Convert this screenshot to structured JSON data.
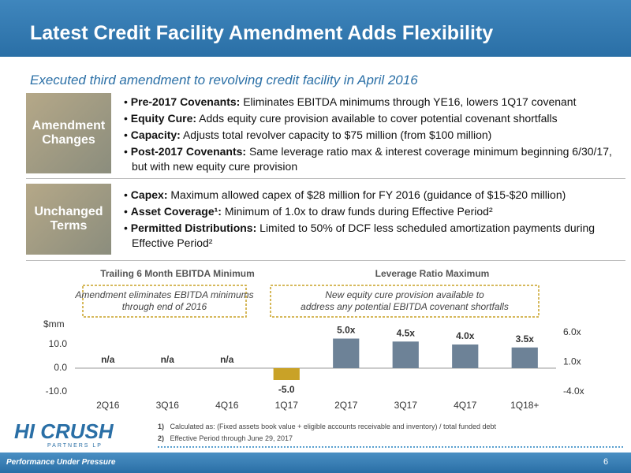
{
  "header": {
    "title": "Latest Credit Facility Amendment Adds Flexibility",
    "subtitle": "Executed third amendment to revolving credit facility in April 2016"
  },
  "sections": [
    {
      "label": "Amendment Changes",
      "bullets": [
        {
          "bold": "Pre-2017 Covenants:",
          "text": "Eliminates EBITDA minimums through YE16, lowers 1Q17 covenant"
        },
        {
          "bold": "Equity Cure:",
          "text": "Adds equity cure provision available to cover potential covenant shortfalls"
        },
        {
          "bold": "Capacity:",
          "text": "Adjusts total revolver capacity to $75 million (from $100 million)"
        },
        {
          "bold": "Post-2017 Covenants:",
          "text": "Same leverage ratio max & interest coverage minimum beginning 6/30/17, but with new equity cure provision"
        }
      ]
    },
    {
      "label": "Unchanged Terms",
      "bullets": [
        {
          "bold": "Capex:",
          "text": "Maximum allowed capex of $28 million for FY 2016 (guidance of $15-$20 million)"
        },
        {
          "bold": "Asset Coverage¹:",
          "text": "Minimum of 1.0x to draw funds during Effective Period²"
        },
        {
          "bold": "Permitted Distributions:",
          "text": "Limited to 50% of DCF less scheduled amortization payments during Effective Period²"
        }
      ]
    }
  ],
  "chart_data": {
    "type": "bar",
    "y_label": "$mm",
    "annotations": [
      "Amendment eliminates EBITDA minimums through end of 2016",
      "New equity cure provision available to address any potential EBITDA covenant shortfalls"
    ],
    "categories": [
      "2Q16",
      "3Q16",
      "4Q16",
      "1Q17",
      "2Q17",
      "3Q17",
      "4Q17",
      "1Q18+"
    ],
    "series": [
      {
        "name": "Trailing 6 Month EBITDA Minimum",
        "color": "#c9a227",
        "values": [
          null,
          null,
          null,
          -5.0,
          null,
          null,
          null,
          null
        ],
        "value_labels": [
          "n/a",
          "n/a",
          "n/a",
          "-5.0",
          null,
          null,
          null,
          null
        ]
      },
      {
        "name": "Leverage Ratio Maximum",
        "color": "#6d8297",
        "axis": "y2",
        "values": [
          null,
          null,
          null,
          null,
          5.0,
          4.5,
          4.0,
          3.5
        ],
        "value_labels": [
          null,
          null,
          null,
          null,
          "5.0x",
          "4.5x",
          "4.0x",
          "3.5x"
        ]
      }
    ],
    "ylim": [
      -10,
      15
    ],
    "yticks": [
      {
        "value": -10,
        "label": "-10.0"
      },
      {
        "value": 0,
        "label": "0.0"
      },
      {
        "value": 10,
        "label": "10.0"
      }
    ],
    "y2lim": [
      -4,
      6
    ],
    "y2ticks": [
      {
        "value": -4,
        "label": "-4.0x"
      },
      {
        "value": 1,
        "label": "1.0x"
      },
      {
        "value": 6,
        "label": "6.0x"
      }
    ]
  },
  "footnotes": [
    {
      "num": "1)",
      "text": "Calculated as: (Fixed assets book value + eligible accounts receivable and inventory) / total funded debt"
    },
    {
      "num": "2)",
      "text": "Effective Period through June 29, 2017"
    }
  ],
  "logo": {
    "name": "HI CRUSH",
    "sub": "PARTNERS LP",
    "tagline": "Performance Under Pressure"
  },
  "page_number": "6"
}
